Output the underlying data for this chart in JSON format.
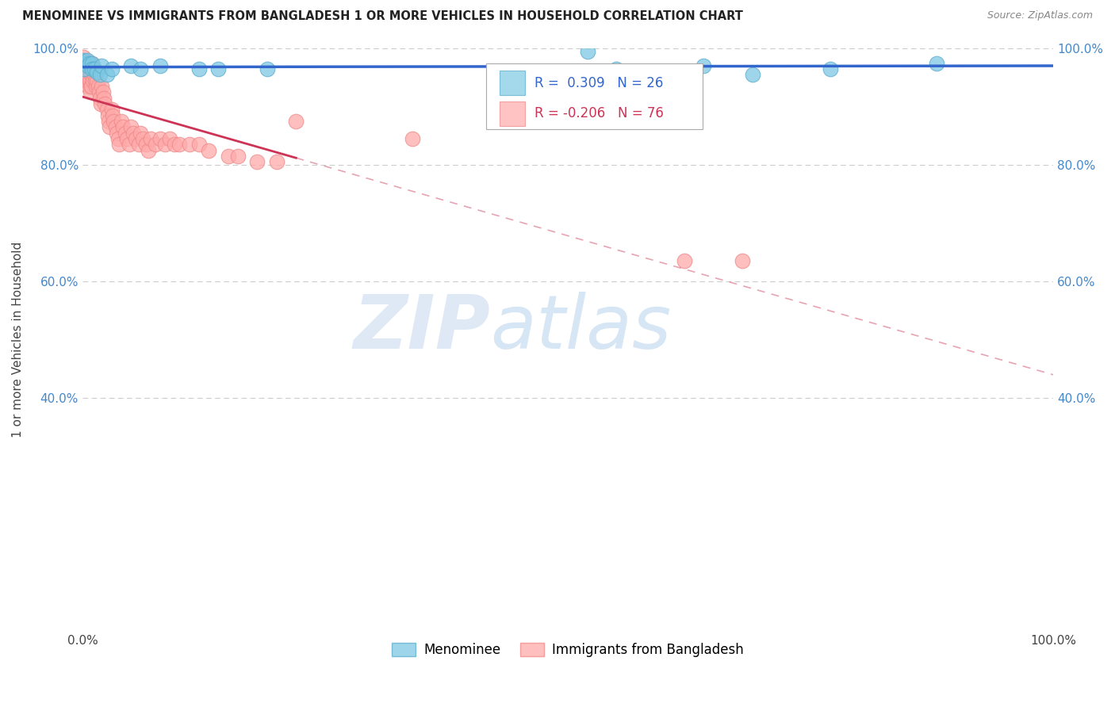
{
  "title": "MENOMINEE VS IMMIGRANTS FROM BANGLADESH 1 OR MORE VEHICLES IN HOUSEHOLD CORRELATION CHART",
  "source": "Source: ZipAtlas.com",
  "ylabel": "1 or more Vehicles in Household",
  "background_color": "#ffffff",
  "grid_color": "#cccccc",
  "menominee_color": "#7ec8e3",
  "menominee_edge_color": "#5aaccc",
  "bangladesh_color": "#ffaaaa",
  "bangladesh_edge_color": "#ee8888",
  "menominee_line_color": "#3366cc",
  "bangladesh_line_color": "#cc3355",
  "menominee_R": 0.309,
  "menominee_N": 26,
  "bangladesh_R": -0.206,
  "bangladesh_N": 76,
  "watermark_zip": "ZIP",
  "watermark_atlas": "atlas",
  "right_tick_color": "#4488cc",
  "left_tick_color": "#4488cc",
  "menominee_x": [
    0.001,
    0.002,
    0.003,
    0.005,
    0.006,
    0.007,
    0.01,
    0.01,
    0.012,
    0.015,
    0.018,
    0.02,
    0.025,
    0.03,
    0.05,
    0.06,
    0.08,
    0.12,
    0.14,
    0.19,
    0.52,
    0.55,
    0.64,
    0.69,
    0.77,
    0.88
  ],
  "menominee_y": [
    0.98,
    0.965,
    0.975,
    0.98,
    0.97,
    0.975,
    0.975,
    0.965,
    0.965,
    0.96,
    0.955,
    0.97,
    0.955,
    0.965,
    0.97,
    0.965,
    0.97,
    0.965,
    0.965,
    0.965,
    0.995,
    0.965,
    0.97,
    0.955,
    0.965,
    0.975
  ],
  "bangladesh_x": [
    0.001,
    0.001,
    0.002,
    0.002,
    0.003,
    0.003,
    0.004,
    0.004,
    0.005,
    0.005,
    0.006,
    0.006,
    0.007,
    0.007,
    0.008,
    0.008,
    0.009,
    0.009,
    0.01,
    0.01,
    0.011,
    0.011,
    0.012,
    0.013,
    0.014,
    0.015,
    0.016,
    0.017,
    0.018,
    0.019,
    0.02,
    0.021,
    0.022,
    0.023,
    0.025,
    0.026,
    0.027,
    0.028,
    0.03,
    0.031,
    0.032,
    0.034,
    0.035,
    0.037,
    0.038,
    0.04,
    0.042,
    0.044,
    0.046,
    0.048,
    0.05,
    0.052,
    0.055,
    0.058,
    0.06,
    0.062,
    0.065,
    0.068,
    0.07,
    0.075,
    0.08,
    0.085,
    0.09,
    0.095,
    0.1,
    0.11,
    0.12,
    0.13,
    0.15,
    0.16,
    0.18,
    0.2,
    0.22,
    0.34,
    0.62,
    0.68
  ],
  "bangladesh_y": [
    0.985,
    0.975,
    0.975,
    0.965,
    0.965,
    0.955,
    0.955,
    0.945,
    0.965,
    0.945,
    0.955,
    0.935,
    0.965,
    0.945,
    0.935,
    0.925,
    0.955,
    0.935,
    0.975,
    0.955,
    0.965,
    0.945,
    0.955,
    0.945,
    0.935,
    0.945,
    0.935,
    0.925,
    0.915,
    0.905,
    0.935,
    0.925,
    0.915,
    0.905,
    0.895,
    0.885,
    0.875,
    0.865,
    0.895,
    0.885,
    0.875,
    0.865,
    0.855,
    0.845,
    0.835,
    0.875,
    0.865,
    0.855,
    0.845,
    0.835,
    0.865,
    0.855,
    0.845,
    0.835,
    0.855,
    0.845,
    0.835,
    0.825,
    0.845,
    0.835,
    0.845,
    0.835,
    0.845,
    0.835,
    0.835,
    0.835,
    0.835,
    0.825,
    0.815,
    0.815,
    0.805,
    0.805,
    0.875,
    0.845,
    0.635,
    0.635
  ],
  "xlim": [
    0.0,
    1.0
  ],
  "ylim": [
    0.0,
    1.0
  ],
  "xtick_positions": [
    0.0,
    0.1,
    0.2,
    0.3,
    0.4,
    0.5,
    0.6,
    0.7,
    0.8,
    0.9,
    1.0
  ],
  "xtick_labels_show": {
    "0.0": "0.0%",
    "1.0": "100.0%"
  },
  "ytick_positions": [
    0.0,
    0.4,
    0.6,
    0.8,
    1.0
  ],
  "ytick_labels": [
    "",
    "40.0%",
    "60.0%",
    "80.0%",
    "100.0%"
  ]
}
